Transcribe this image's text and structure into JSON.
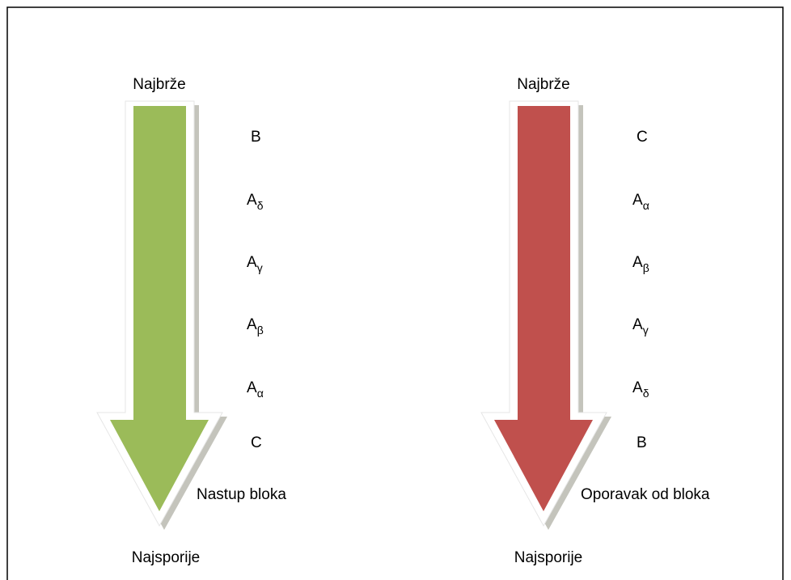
{
  "arrows": [
    {
      "top": "Najbrže",
      "bottom": "Najsporije",
      "caption": "Nastup bloka",
      "items": [
        {
          "letter": "B"
        },
        {
          "letter": "A",
          "sub": "δ"
        },
        {
          "letter": "A",
          "sub": "γ"
        },
        {
          "letter": "A",
          "sub": "β"
        },
        {
          "letter": "A",
          "sub": "α"
        },
        {
          "letter": "C"
        }
      ]
    },
    {
      "top": "Najbrže",
      "bottom": "Najsporije",
      "caption": "Oporavak od bloka",
      "items": [
        {
          "letter": "C"
        },
        {
          "letter": "A",
          "sub": "α"
        },
        {
          "letter": "A",
          "sub": "β"
        },
        {
          "letter": "A",
          "sub": "γ"
        },
        {
          "letter": "A",
          "sub": "δ"
        },
        {
          "letter": "B"
        }
      ]
    }
  ]
}
